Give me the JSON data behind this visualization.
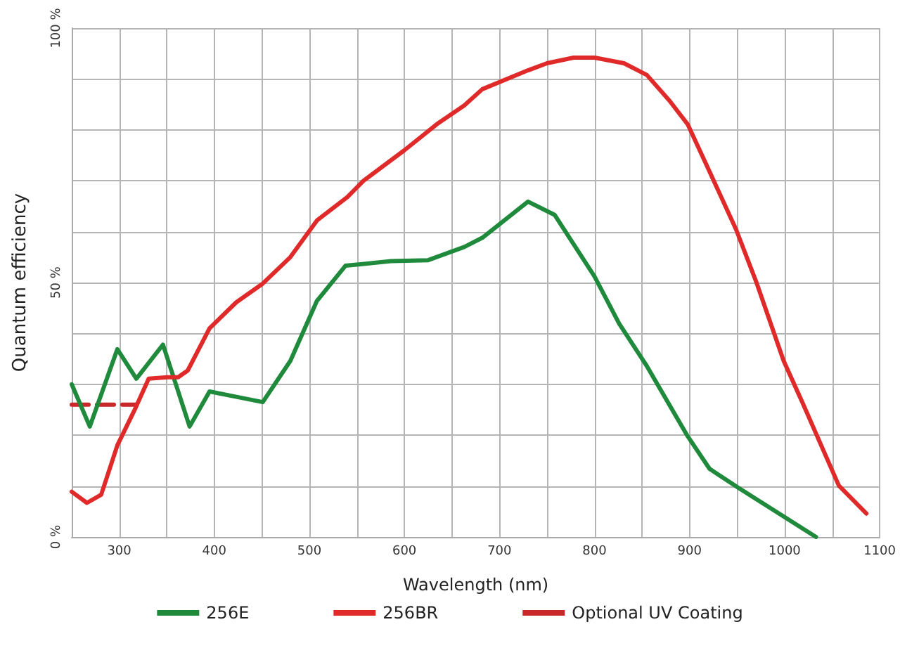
{
  "chart_data": {
    "type": "line",
    "xlabel": "Wavelength (nm)",
    "ylabel": "Quantum efficiency",
    "xlim": [
      250,
      1100
    ],
    "ylim": [
      0,
      100
    ],
    "xticks": [
      {
        "value": 250,
        "label": null
      },
      300,
      {
        "value": 350,
        "label": null
      },
      400,
      {
        "value": 450,
        "label": null
      },
      500,
      {
        "value": 550,
        "label": null
      },
      600,
      {
        "value": 650,
        "label": null
      },
      700,
      {
        "value": 750,
        "label": null
      },
      800,
      {
        "value": 850,
        "label": null
      },
      900,
      {
        "value": 950,
        "label": null
      },
      1000,
      {
        "value": 1050,
        "label": null
      },
      1100
    ],
    "yticks": [
      {
        "value": 0,
        "label": "0 %"
      },
      {
        "value": 10,
        "label": null
      },
      {
        "value": 20,
        "label": null
      },
      {
        "value": 30,
        "label": null
      },
      {
        "value": 40,
        "label": null
      },
      {
        "value": 50,
        "label": "50 %"
      },
      {
        "value": 60,
        "label": null
      },
      {
        "value": 70,
        "label": null
      },
      {
        "value": 80,
        "label": null
      },
      {
        "value": 90,
        "label": null
      },
      {
        "value": 100,
        "label": "100 %"
      }
    ],
    "grid": true,
    "legend": "bottom",
    "marker": "none",
    "series": [
      {
        "name": "256E",
        "color": "#1f8a3c",
        "line_style": "solid",
        "x": [
          250,
          269,
          298,
          318,
          346,
          374,
          395,
          427,
          451,
          480,
          508,
          538,
          586,
          625,
          663,
          682,
          730,
          758,
          800,
          826,
          855,
          898,
          921,
          951,
          1033
        ],
        "values": [
          30,
          21.7,
          36.9,
          31.1,
          37.8,
          21.7,
          28.6,
          27.4,
          26.5,
          34.6,
          46.4,
          53.3,
          54.2,
          54.4,
          57,
          58.8,
          65.9,
          63.3,
          51.2,
          41.9,
          33.6,
          19.8,
          13.4,
          9.7,
          0
        ]
      },
      {
        "name": "256BR",
        "color": "#e02a2a",
        "line_style": "solid",
        "x": [
          250,
          266,
          281,
          298,
          317,
          331,
          351,
          362,
          372,
          395,
          423,
          451,
          480,
          508,
          540,
          557,
          600,
          634,
          663,
          682,
          730,
          750,
          778,
          800,
          831,
          855,
          879,
          898,
          922,
          949,
          970,
          999,
          1019,
          1057,
          1086
        ],
        "values": [
          8.9,
          6.7,
          8.3,
          18,
          25.3,
          31.1,
          31.4,
          31.4,
          32.7,
          41,
          46.1,
          49.8,
          55,
          62.2,
          66.8,
          70,
          76,
          81.1,
          84.8,
          88,
          91.7,
          93.1,
          94.2,
          94.2,
          93.1,
          90.8,
          85.7,
          81.1,
          71.4,
          60.4,
          50.2,
          34.6,
          26.3,
          10.1,
          4.6
        ]
      },
      {
        "name": "Optional UV Coating",
        "color": "#c8282a",
        "line_style": "dashed",
        "x": [
          250,
          318
        ],
        "values": [
          26,
          26
        ]
      }
    ]
  }
}
